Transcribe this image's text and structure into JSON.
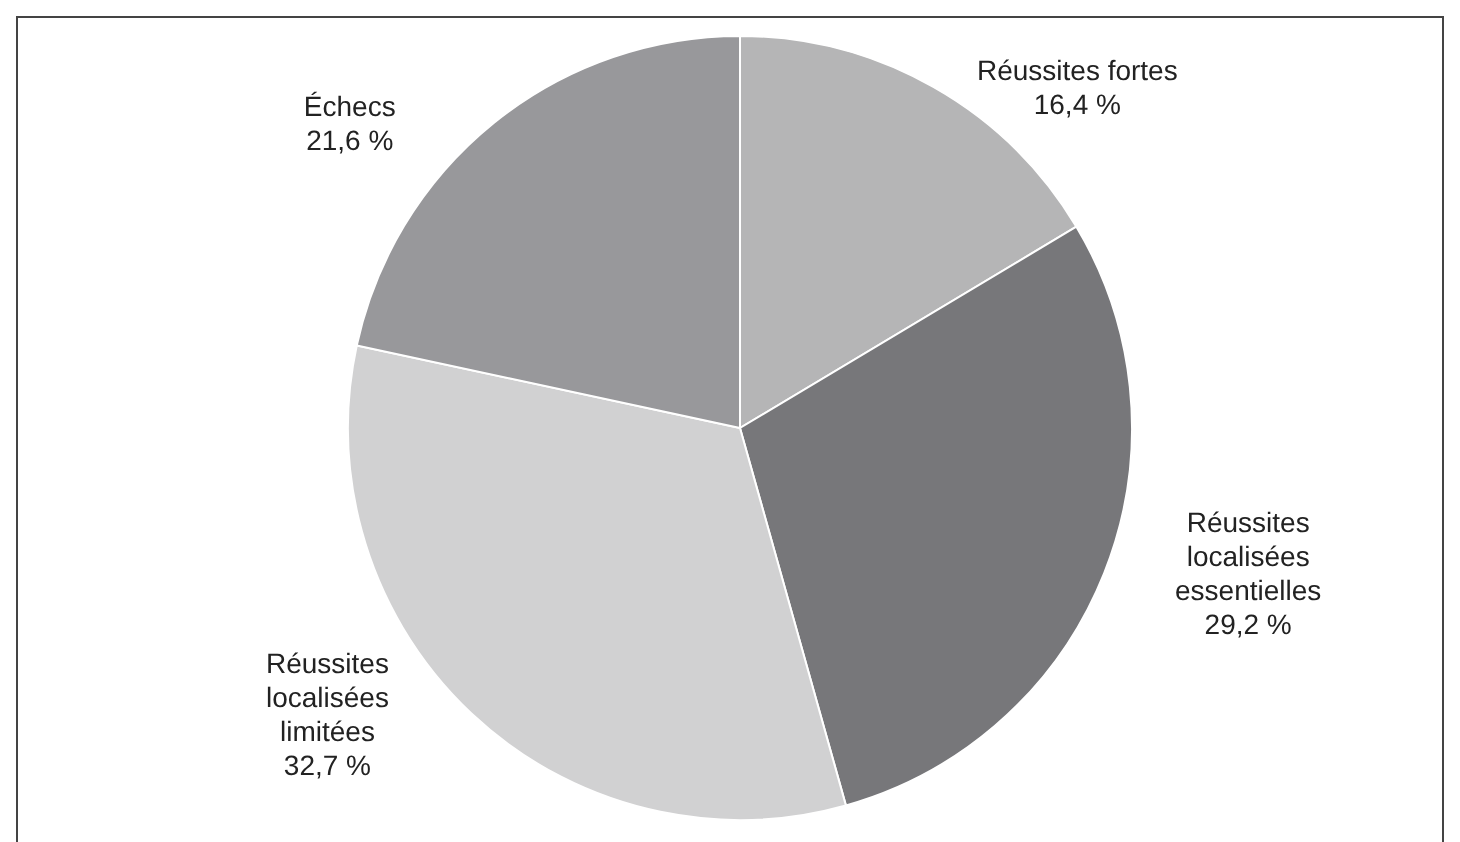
{
  "chart_data": {
    "type": "pie",
    "categories": [
      "Réussites fortes",
      "Réussites localisées essentielles",
      "Réussites localisées limitées",
      "Échecs"
    ],
    "values": [
      16.4,
      29.2,
      32.7,
      21.6
    ],
    "value_labels": [
      "16,4 %",
      "29,2 %",
      "32,7 %",
      "21,6 %"
    ],
    "colors": [
      "#b5b5b6",
      "#77777a",
      "#d1d1d2",
      "#98989b"
    ]
  }
}
